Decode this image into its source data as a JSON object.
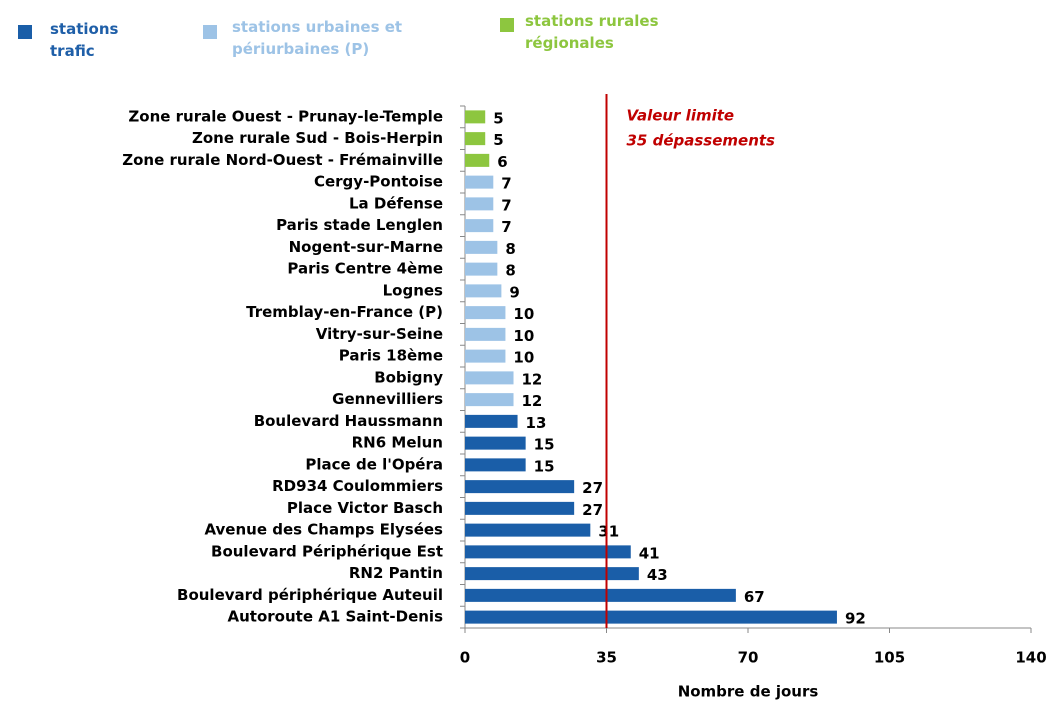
{
  "chart_data": {
    "type": "barh",
    "categories": [
      "Zone rurale Ouest - Prunay-le-Temple",
      "Zone rurale Sud - Bois-Herpin",
      "Zone rurale Nord-Ouest - Frémainville",
      "Cergy-Pontoise",
      "La Défense",
      "Paris stade Lenglen",
      "Nogent-sur-Marne",
      "Paris Centre 4ème",
      "Lognes",
      "Tremblay-en-France (P)",
      "Vitry-sur-Seine",
      "Paris 18ème",
      "Bobigny",
      "Gennevilliers",
      "Boulevard Haussmann",
      "RN6 Melun",
      "Place de l'Opéra",
      "RD934 Coulommiers",
      "Place Victor Basch",
      "Avenue des Champs Elysées",
      "Boulevard Périphérique Est",
      "RN2 Pantin",
      "Boulevard périphérique Auteuil",
      "Autoroute A1 Saint-Denis"
    ],
    "series": [
      {
        "name": "stations trafic",
        "color": "#1a5ea8",
        "values": [
          null,
          null,
          null,
          null,
          null,
          null,
          null,
          null,
          null,
          null,
          null,
          null,
          null,
          null,
          13,
          15,
          15,
          27,
          27,
          31,
          41,
          43,
          67,
          92
        ]
      },
      {
        "name": "stations urbaines et périurbaines (P)",
        "color": "#9dc3e6",
        "values": [
          null,
          null,
          null,
          7,
          7,
          7,
          8,
          8,
          9,
          10,
          10,
          10,
          12,
          12,
          null,
          null,
          null,
          null,
          null,
          null,
          null,
          null,
          null,
          null
        ]
      },
      {
        "name": "stations rurales régionales",
        "color": "#8dc63f",
        "values": [
          5,
          5,
          6,
          null,
          null,
          null,
          null,
          null,
          null,
          null,
          null,
          null,
          null,
          null,
          null,
          null,
          null,
          null,
          null,
          null,
          null,
          null,
          null,
          null
        ]
      }
    ],
    "xlabel": "Nombre de jours",
    "xlim": [
      0,
      140
    ],
    "xticks": [
      0,
      35,
      70,
      105,
      140
    ],
    "reference_line": {
      "value": 35,
      "color": "#c00000",
      "label": [
        "Valeur limite",
        "35 dépassements"
      ]
    }
  }
}
